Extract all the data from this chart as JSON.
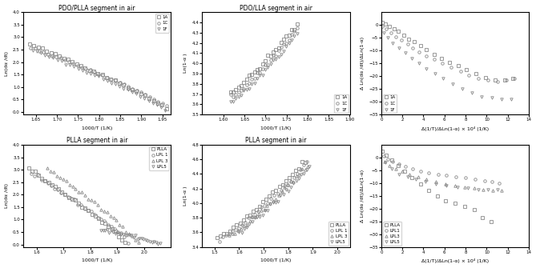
{
  "fig_width": 6.69,
  "fig_height": 3.35,
  "dpi": 100,
  "top_left": {
    "title": "PDO/PLLA segment in air",
    "xlabel": "1000/T (1/K)",
    "ylabel": "Ln(dα /dt)",
    "xlim": [
      1.62,
      1.97
    ],
    "ylim": [
      -0.1,
      4.0
    ],
    "xticks": [
      1.65,
      1.7,
      1.75,
      1.8,
      1.85,
      1.9,
      1.95
    ],
    "yticks": [
      0.0,
      0.5,
      1.0,
      1.5,
      2.0,
      2.5,
      3.0,
      3.5,
      4.0
    ],
    "series": [
      {
        "label": "1A",
        "marker": "s",
        "x_start": 1.635,
        "x_end": 1.96,
        "y_start": 2.73,
        "y_end": 0.12
      },
      {
        "label": "1C",
        "marker": "o",
        "x_start": 1.638,
        "x_end": 1.96,
        "y_start": 2.6,
        "y_end": 0.22
      },
      {
        "label": "1F",
        "marker": "v",
        "x_start": 1.642,
        "x_end": 1.957,
        "y_start": 2.48,
        "y_end": 0.05
      }
    ]
  },
  "top_mid": {
    "title": "PDO/LLA segment in air",
    "xlabel": "1000/T (1/K)",
    "ylabel": "Ln(1-α )",
    "xlim": [
      1.55,
      1.9
    ],
    "ylim": [
      3.5,
      4.5
    ],
    "xticks": [
      1.6,
      1.65,
      1.7,
      1.75,
      1.8,
      1.85,
      1.9
    ],
    "yticks": [
      3.5,
      3.6,
      3.7,
      3.8,
      3.9,
      4.0,
      4.1,
      4.2,
      4.3,
      4.4
    ],
    "series": [
      {
        "label": "1A",
        "marker": "s",
        "x_start": 1.617,
        "x_end": 1.775,
        "y_start": 3.72,
        "y_end": 4.38
      },
      {
        "label": "1C",
        "marker": "o",
        "x_start": 1.617,
        "x_end": 1.775,
        "y_start": 3.67,
        "y_end": 4.34
      },
      {
        "label": "1F",
        "marker": "v",
        "x_start": 1.617,
        "x_end": 1.775,
        "y_start": 3.62,
        "y_end": 4.29
      }
    ]
  },
  "top_right": {
    "xlabel": "Δ(1/T)/ΔLn(1-α) × 10⁴ (1/K)",
    "ylabel": "Δ Ln(dα /dt)/ΔLn(1-α)",
    "xlim": [
      0,
      14
    ],
    "ylim": [
      -35,
      5
    ],
    "xticks": [
      0,
      2,
      4,
      6,
      8,
      10,
      12,
      14
    ],
    "yticks": [
      0,
      -5,
      -10,
      -15,
      -20,
      -25,
      -30,
      -35
    ],
    "series": [
      {
        "label": "1A",
        "marker": "s",
        "pts_x": [
          0.1,
          0.4,
          0.8,
          1.2,
          1.6,
          2.1,
          2.6,
          3.1,
          3.7,
          4.3,
          5.0,
          5.7,
          6.5,
          7.3,
          8.1,
          9.0,
          9.9,
          10.8,
          11.7,
          12.5
        ],
        "pts_y": [
          1.0,
          0.5,
          -0.5,
          -1.5,
          -2.5,
          -4.0,
          -5.5,
          -6.5,
          -8.0,
          -9.5,
          -11.5,
          -13.0,
          -14.5,
          -16.0,
          -17.5,
          -19.0,
          -20.5,
          -21.5,
          -21.5,
          -21.0
        ]
      },
      {
        "label": "1C",
        "marker": "o",
        "pts_x": [
          0.1,
          0.5,
          0.9,
          1.4,
          1.9,
          2.5,
          3.0,
          3.6,
          4.3,
          5.0,
          5.8,
          6.6,
          7.5,
          8.3,
          9.2,
          10.1,
          11.0,
          11.9,
          12.6
        ],
        "pts_y": [
          -0.5,
          -1.5,
          -3.0,
          -4.5,
          -6.0,
          -7.5,
          -9.0,
          -10.5,
          -12.0,
          -13.5,
          -15.0,
          -16.5,
          -18.0,
          -19.5,
          -21.0,
          -21.5,
          -22.0,
          -21.5,
          -21.0
        ]
      },
      {
        "label": "1F",
        "marker": "v",
        "pts_x": [
          0.2,
          0.6,
          1.1,
          1.7,
          2.3,
          2.9,
          3.6,
          4.3,
          5.1,
          5.9,
          6.8,
          7.7,
          8.6,
          9.5,
          10.5,
          11.4,
          12.3
        ],
        "pts_y": [
          -3.0,
          -5.0,
          -7.0,
          -9.0,
          -11.0,
          -13.0,
          -15.0,
          -17.0,
          -19.0,
          -21.0,
          -23.0,
          -25.0,
          -26.5,
          -28.0,
          -28.5,
          -29.0,
          -29.0
        ]
      }
    ]
  },
  "bot_left": {
    "title": "PLLA segment in air",
    "xlabel": "1000/T (1/K)",
    "ylabel": "Ln(dα /dt)",
    "xlim": [
      1.55,
      2.1
    ],
    "ylim": [
      -0.1,
      4.0
    ],
    "xticks": [
      1.6,
      1.7,
      1.8,
      1.9,
      2.0
    ],
    "yticks": [
      0.0,
      0.5,
      1.0,
      1.5,
      2.0,
      2.5,
      3.0,
      3.5,
      4.0
    ],
    "series": [
      {
        "label": "PLLA",
        "marker": "s",
        "x_start": 1.57,
        "x_end": 1.93,
        "y_start": 3.02,
        "y_end": 0.05
      },
      {
        "label": "LPL 1",
        "marker": "o",
        "x_start": 1.58,
        "x_end": 1.94,
        "y_start": 2.82,
        "y_end": 0.12
      },
      {
        "label": "LPL 3",
        "marker": "^",
        "x_start": 1.64,
        "x_end": 1.98,
        "y_start": 3.05,
        "y_end": 0.04
      },
      {
        "label": "LPL5",
        "marker": "v",
        "x_start": 1.84,
        "x_end": 2.06,
        "y_start": 0.6,
        "y_end": 0.01
      }
    ]
  },
  "bot_mid": {
    "title": "PLLA segment in air",
    "xlabel": "1000/T (1/K)",
    "ylabel": "Ln(1-α )",
    "xlim": [
      1.45,
      2.05
    ],
    "ylim": [
      3.4,
      4.8
    ],
    "xticks": [
      1.5,
      1.6,
      1.7,
      1.8,
      1.9,
      2.0
    ],
    "yticks": [
      3.4,
      3.6,
      3.8,
      4.0,
      4.2,
      4.4,
      4.6,
      4.8
    ],
    "series": [
      {
        "label": "PLLA",
        "marker": "s",
        "x_start": 1.51,
        "x_end": 1.87,
        "y_start": 3.52,
        "y_end": 4.58
      },
      {
        "label": "LPL 1",
        "marker": "o",
        "x_start": 1.52,
        "x_end": 1.875,
        "y_start": 3.5,
        "y_end": 4.55
      },
      {
        "label": "LPL 3",
        "marker": "^",
        "x_start": 1.56,
        "x_end": 1.88,
        "y_start": 3.56,
        "y_end": 4.52
      },
      {
        "label": "LPL5",
        "marker": "v",
        "x_start": 1.6,
        "x_end": 1.885,
        "y_start": 3.62,
        "y_end": 4.5
      }
    ]
  },
  "bot_right": {
    "xlabel": "Δ(1/T)/ΔLn(1-α) × 10⁴ (1/K)",
    "ylabel": "Δ Ln(dα /dt)/ΔLn(1-α)",
    "xlim": [
      0,
      14
    ],
    "ylim": [
      -35,
      5
    ],
    "xticks": [
      0,
      2,
      4,
      6,
      8,
      10,
      12,
      14
    ],
    "yticks": [
      0,
      -5,
      -10,
      -15,
      -20,
      -25,
      -30,
      -35
    ],
    "series": [
      {
        "label": "PLLA",
        "marker": "s",
        "pts_x": [
          0.1,
          0.5,
          1.0,
          1.6,
          2.2,
          2.9,
          3.7,
          4.5,
          5.3,
          6.1,
          7.0,
          7.9,
          8.8,
          9.6,
          10.4
        ],
        "pts_y": [
          2.5,
          1.0,
          -1.0,
          -3.0,
          -5.5,
          -8.0,
          -10.5,
          -13.0,
          -15.0,
          -17.0,
          -18.0,
          -19.0,
          -20.5,
          -23.5,
          -25.0
        ]
      },
      {
        "label": "LPL1",
        "marker": "o",
        "pts_x": [
          0.2,
          0.6,
          1.1,
          1.7,
          2.3,
          3.0,
          3.7,
          4.5,
          5.4,
          6.2,
          7.1,
          8.0,
          8.9,
          9.8,
          10.5,
          11.2
        ],
        "pts_y": [
          0.5,
          -0.5,
          -1.5,
          -2.5,
          -3.5,
          -4.5,
          -5.5,
          -6.0,
          -6.5,
          -7.0,
          -7.5,
          -8.0,
          -8.5,
          -9.0,
          -9.5,
          -10.0
        ]
      },
      {
        "label": "LPL3",
        "marker": "^",
        "pts_x": [
          0.3,
          0.8,
          1.4,
          2.0,
          2.7,
          3.5,
          4.3,
          5.2,
          6.1,
          7.0,
          7.9,
          8.8,
          9.7,
          10.6,
          11.4
        ],
        "pts_y": [
          -1.5,
          -3.0,
          -4.5,
          -5.5,
          -6.5,
          -7.5,
          -8.5,
          -9.5,
          -10.5,
          -11.0,
          -11.5,
          -12.0,
          -12.5,
          -13.0,
          -13.0
        ]
      },
      {
        "label": "LPL5",
        "marker": "v",
        "pts_x": [
          0.4,
          1.0,
          1.7,
          2.5,
          3.3,
          4.2,
          5.2,
          6.2,
          7.2,
          8.2,
          9.2,
          10.1,
          11.0
        ],
        "pts_y": [
          -2.0,
          -4.5,
          -6.5,
          -7.5,
          -8.5,
          -9.5,
          -10.5,
          -11.0,
          -11.5,
          -12.0,
          -12.5,
          -12.5,
          -12.5
        ]
      }
    ]
  },
  "marker_color": "#888888",
  "marker_face_color": "none"
}
